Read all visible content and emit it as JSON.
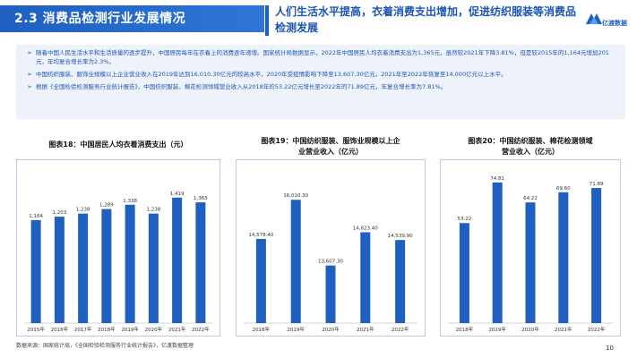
{
  "header": {
    "section_title": "2.3 消费品检测行业发展情况",
    "headline_line1": "人们生活水平提高，衣着消费支出增加，促进纺织服装等消费品",
    "headline_line2": "检测发展",
    "logo_text": "亿渡数据"
  },
  "bullets": [
    "随着中国人民生活水平和生活质量的逐步提升，中国居民每年在衣着上的消费逐年递增。国家统计局数据显示，2022年中国居民人均衣着消费支出为1,365元，虽然较2021年下降3.81%，但是较2015年的1,164元增加201元，年均复合增长率为2.3%。",
    "中国纺织服装、服饰业规模以上企业营业收入在2019年达到16,010.30亿元的较高水平，2020年受疫情影响下降至13,607.30亿元，2021年至2022年恢复至14,000亿元以上水平。",
    "根据《全国检验检测服务行业统计报告》，中国纺织服装、棉花检测领域营业收入从2018年的53.22亿元增长至2022年的71.89亿元，年复合增长率为7.81%。"
  ],
  "charts": [
    {
      "title": "图表18：中国居民人均衣着消费支出（元）",
      "type": "bar",
      "categories": [
        "2015年",
        "2016年",
        "2017年",
        "2018年",
        "2019年",
        "2020年",
        "2021年",
        "2022年"
      ],
      "values": [
        1164,
        1203,
        1238,
        1289,
        1338,
        1238,
        1419,
        1365
      ],
      "labels": [
        "1,164",
        "1,203",
        "1,238",
        "1,289",
        "1,338",
        "1,238",
        "1,419",
        "1,365"
      ],
      "ylim": [
        0,
        1700
      ]
    },
    {
      "title_line1": "图表19：中国纺织服装、服饰业规模以上企",
      "title_line2": "业营业收入（亿元）",
      "type": "bar",
      "categories": [
        "2018年",
        "2019年",
        "2020年",
        "2021年",
        "2022年"
      ],
      "values": [
        14578.4,
        16010.3,
        13607.3,
        14823.4,
        14539.9
      ],
      "labels": [
        "14,578.40",
        "16,010.30",
        "13,607.30",
        "14,823.40",
        "14,539.90"
      ],
      "ylim": [
        11500,
        17000
      ]
    },
    {
      "title_line1": "图表20：中国纺织服装、棉花检测领域",
      "title_line2": "营业收入（亿元）",
      "type": "bar",
      "categories": [
        "2018年",
        "2019年",
        "2020年",
        "2021年",
        "2022年"
      ],
      "values": [
        53.22,
        74.81,
        64.22,
        69.6,
        71.89
      ],
      "labels": [
        "53.22",
        "74.81",
        "64.22",
        "69.60",
        "71.89"
      ],
      "ylim": [
        0,
        80
      ]
    }
  ],
  "footer": {
    "source": "数据来源：国家统计局，《全国检验检测服务行业统计报告》，亿渡数据整理",
    "page": "10"
  },
  "colors": {
    "bar": "#1f5fbf",
    "accent": "#1a55b0"
  }
}
